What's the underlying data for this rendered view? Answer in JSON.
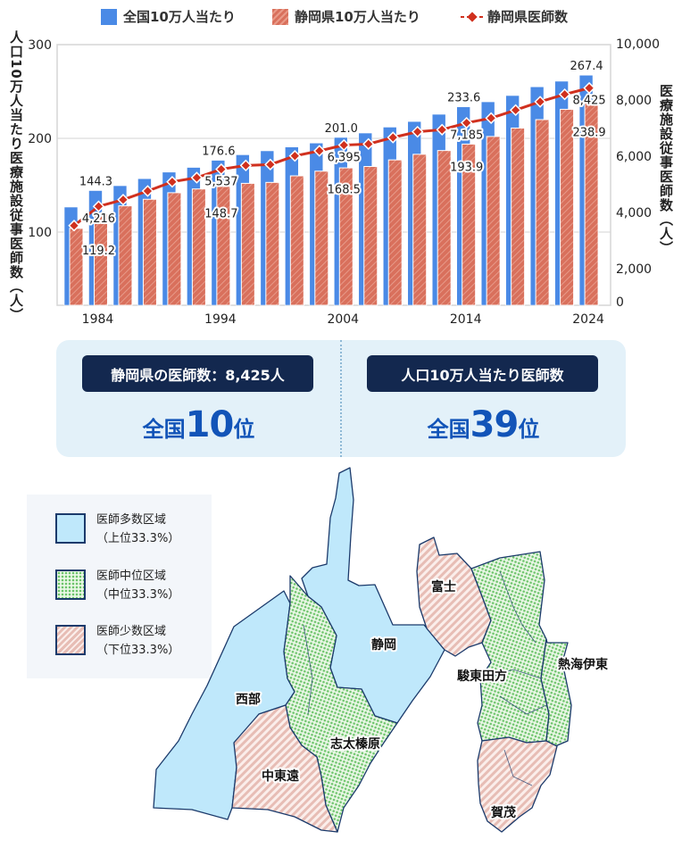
{
  "chart_data": {
    "type": "bar+line",
    "legend": [
      "全国10万人当たり",
      "静岡県10万人当たり",
      "静岡県医師数"
    ],
    "y_left_label": "人口10万人当たり医療施設従事医師数（人）",
    "y_right_label": "医療施設従事医師数（人）",
    "y_left_ticks": [
      "300",
      "200",
      "100"
    ],
    "y_right_ticks": [
      "10,000",
      "8,000",
      "6,000",
      "4,000",
      "2,000",
      "0"
    ],
    "y_left_range": [
      22,
      300
    ],
    "y_right_range": [
      0,
      10000
    ],
    "x_tick_labels": [
      "1984",
      "1994",
      "2004",
      "2014",
      "2024"
    ],
    "years": [
      1982,
      1984,
      1986,
      1988,
      1990,
      1992,
      1994,
      1996,
      1998,
      2000,
      2002,
      2004,
      2006,
      2008,
      2010,
      2012,
      2014,
      2016,
      2018,
      2020,
      2022,
      2024
    ],
    "series": [
      {
        "name": "全国10万人当たり",
        "axis": "left",
        "color": "#4a8ae6",
        "values": [
          126.7,
          144.3,
          149.5,
          157.0,
          164.0,
          169.0,
          176.6,
          182.5,
          186.7,
          190.8,
          195.0,
          201.0,
          205.7,
          212.0,
          218.0,
          225.7,
          233.6,
          239.0,
          245.7,
          255.0,
          261.0,
          267.4
        ]
      },
      {
        "name": "静岡県10万人当たり",
        "axis": "left",
        "color": "#d9705c",
        "values": [
          104.0,
          119.2,
          128.0,
          135.0,
          142.0,
          146.0,
          148.7,
          152.0,
          153.0,
          160.0,
          165.0,
          168.5,
          170.0,
          177.0,
          183.0,
          187.0,
          193.9,
          202.0,
          211.0,
          220.0,
          231.0,
          238.9
        ]
      },
      {
        "name": "静岡県医師数",
        "axis": "right",
        "color": "#d0301e",
        "values": [
          3533,
          4216,
          4454,
          4762,
          5089,
          5238,
          5537,
          5672,
          5704,
          6010,
          6190,
          6395,
          6434,
          6667,
          6868,
          6942,
          7185,
          7355,
          7640,
          7937,
          8200,
          8425
        ]
      }
    ],
    "data_labels": {
      "national": [
        "144.3",
        "176.6",
        "201.0",
        "233.6",
        "267.4"
      ],
      "pref": [
        "119.2",
        "148.7",
        "168.5",
        "193.9",
        "238.9"
      ],
      "count": [
        "4,216",
        "5,537",
        "6,395",
        "7,185",
        "8,425"
      ]
    }
  },
  "summary": {
    "left_badge": "静岡県の医師数：8,425人",
    "left_rank_prefix": "全国",
    "left_rank_number": "10",
    "left_rank_suffix": "位",
    "right_badge": "人口10万人当たり医師数",
    "right_rank_prefix": "全国",
    "right_rank_number": "39",
    "right_rank_suffix": "位"
  },
  "map_legend": [
    {
      "line1": "医師多数区域",
      "line2": "（上位33.3%）"
    },
    {
      "line1": "医師中位区域",
      "line2": "（中位33.3%）"
    },
    {
      "line1": "医師少数区域",
      "line2": "（下位33.3%）"
    }
  ],
  "map_regions": {
    "seibu": "西部",
    "shizuoka": "静岡",
    "shidahaibara": "志太榛原",
    "nakatoen": "中東遠",
    "fuji": "富士",
    "suntotagata": "駿東田方",
    "atamiito": "熱海伊東",
    "kamo": "賀茂"
  },
  "colors": {
    "national": "#4a8ae6",
    "pref": "#d9705c",
    "line": "#d0301e",
    "badge": "#13284f",
    "rank": "#1254b8",
    "many": "#bfe8fb",
    "mid": "#6cc46a",
    "few": "#e7bdb5"
  }
}
